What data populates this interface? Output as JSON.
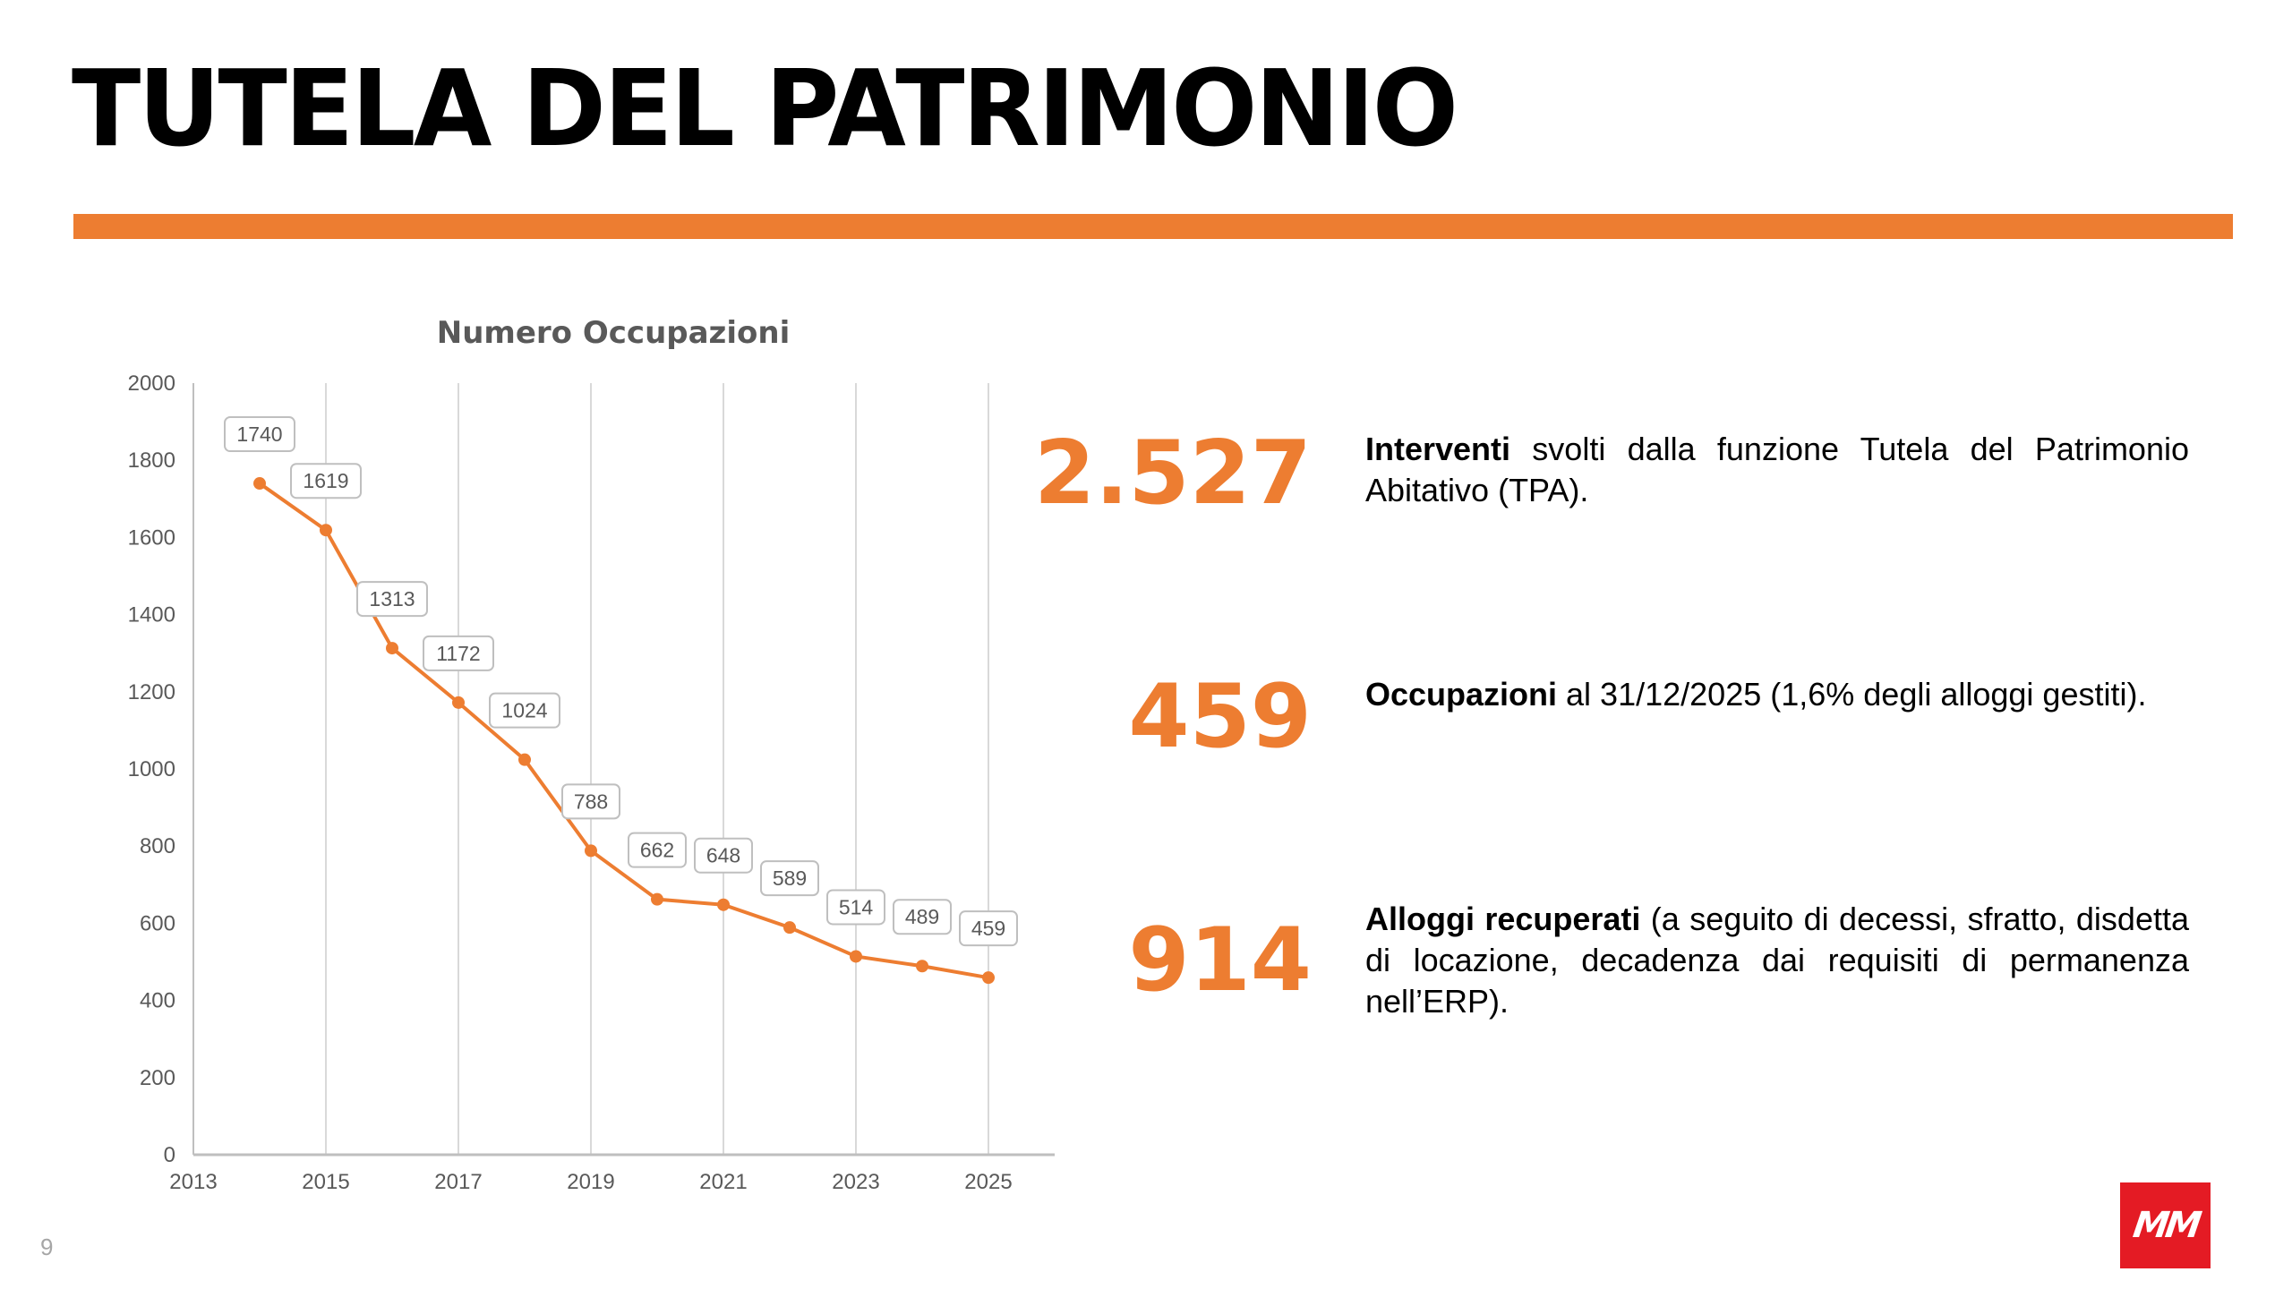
{
  "slide": {
    "title": "TUTELA DEL PATRIMONIO",
    "page_number": "9",
    "accent_color": "#ed7d31",
    "logo_text": "MM",
    "logo_color": "#e41b24"
  },
  "stats": [
    {
      "number": "2.527",
      "bold": "Interventi",
      "text": " svolti dalla funzione Tutela del Patrimonio Abitativo (TPA)."
    },
    {
      "number": "459",
      "bold": "Occupazioni",
      "text": " al 31/12/2025 (1,6% degli alloggi gestiti)."
    },
    {
      "number": "914",
      "bold": "Alloggi recuperati",
      "text": " (a seguito di decessi, sfratto, disdetta di locazione, decadenza dai requisiti di permanenza nell’ERP)."
    }
  ],
  "chart_data": {
    "type": "line",
    "title": "Numero Occupazioni",
    "xlabel": "",
    "ylabel": "",
    "x": [
      2014,
      2015,
      2016,
      2017,
      2018,
      2019,
      2020,
      2021,
      2022,
      2023,
      2024,
      2025
    ],
    "series": [
      {
        "name": "Numero Occupazioni",
        "values": [
          1740,
          1619,
          1313,
          1172,
          1024,
          788,
          662,
          648,
          589,
          514,
          489,
          459
        ],
        "color": "#ed7d31"
      }
    ],
    "xlim": [
      2013,
      2026
    ],
    "ylim": [
      0,
      2000
    ],
    "x_ticks": [
      "2013",
      "2015",
      "2017",
      "2019",
      "2021",
      "2023",
      "2025"
    ],
    "y_ticks": [
      "0",
      "200",
      "400",
      "600",
      "800",
      "1000",
      "1200",
      "1400",
      "1600",
      "1800",
      "2000"
    ],
    "grid": "vertical",
    "data_labels": true,
    "legend": "none"
  }
}
